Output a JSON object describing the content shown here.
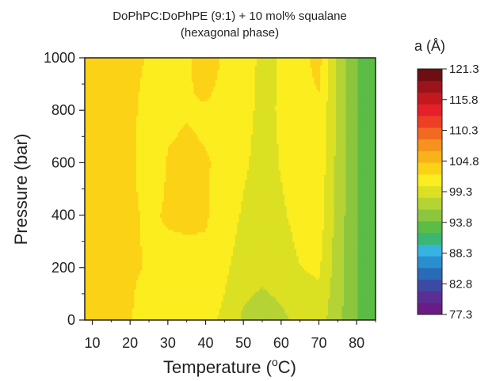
{
  "chart_data": {
    "type": "heatmap",
    "title_line1": "DoPhPC:DoPhPE (9:1) + 10 mol% squalane",
    "title_line2": "(hexagonal phase)",
    "xlabel": "Temperature (",
    "xlabel_sup": "o",
    "xlabel_end": "C)",
    "ylabel": "Pressure (bar)",
    "xlim": [
      8,
      85
    ],
    "ylim": [
      0,
      1000
    ],
    "x_ticks": [
      10,
      20,
      30,
      40,
      50,
      60,
      70,
      80
    ],
    "y_ticks": [
      0,
      200,
      400,
      600,
      800,
      1000
    ],
    "colorbar": {
      "label": "a (Å)",
      "min": 77.3,
      "max": 121.3,
      "ticks": [
        121.3,
        115.8,
        110.3,
        104.8,
        99.3,
        93.8,
        88.3,
        82.8,
        77.3
      ],
      "tick_labels": [
        "121.3",
        "115.8",
        "110.3",
        "104.8",
        "99.3",
        "93.8",
        "88.3",
        "82.8",
        "77.3"
      ],
      "color_steps": [
        "#6a1b85",
        "#5a2e93",
        "#3d4aa4",
        "#2a6bb8",
        "#2a8fcf",
        "#36b3e0",
        "#3bb673",
        "#5bbc46",
        "#8cc63f",
        "#b5d334",
        "#dbe023",
        "#fbed1f",
        "#fcd217",
        "#f9b31a",
        "#f6921e",
        "#f26a22",
        "#ed3f24",
        "#e4202a",
        "#c4181f",
        "#9b141a",
        "#6b0f14"
      ]
    },
    "temperatures": [
      10,
      15,
      20,
      25,
      30,
      35,
      40,
      45,
      50,
      55,
      60,
      65,
      70,
      75,
      80,
      85
    ],
    "pressures": [
      0,
      200,
      400,
      600,
      800,
      1000
    ],
    "z": [
      [
        104.5,
        103.0,
        102.6,
        101.3,
        101.0,
        101.0,
        101.0,
        99.9,
        97.9,
        97.3,
        97.8,
        98.8,
        99.2,
        96.8,
        94.2,
        92.0
      ],
      [
        104.4,
        103.0,
        102.7,
        102.3,
        102.0,
        102.0,
        102.1,
        100.8,
        99.2,
        98.8,
        99.3,
        100.3,
        100.7,
        97.1,
        94.2,
        92.0
      ],
      [
        104.3,
        103.0,
        102.7,
        102.2,
        102.6,
        102.7,
        102.6,
        101.7,
        100.0,
        99.0,
        100.0,
        101.1,
        101.4,
        97.4,
        94.1,
        91.9
      ],
      [
        104.2,
        103.0,
        102.7,
        101.8,
        102.5,
        102.6,
        102.5,
        102.3,
        100.8,
        99.3,
        100.5,
        101.5,
        101.8,
        97.6,
        94.1,
        91.9
      ],
      [
        104.1,
        103.0,
        102.6,
        102.2,
        102.3,
        102.4,
        102.3,
        102.1,
        101.4,
        99.5,
        100.7,
        101.6,
        102.1,
        97.8,
        94.1,
        91.9
      ],
      [
        104.0,
        103.0,
        102.6,
        102.4,
        102.2,
        102.2,
        103.2,
        102.2,
        101.9,
        99.6,
        100.6,
        101.6,
        103.2,
        97.9,
        94.1,
        91.9
      ]
    ]
  }
}
